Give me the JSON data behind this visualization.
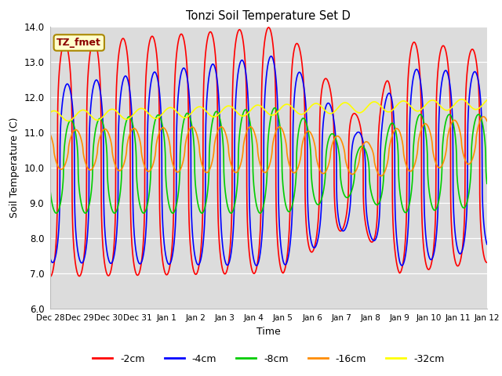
{
  "title": "Tonzi Soil Temperature Set D",
  "xlabel": "Time",
  "ylabel": "Soil Temperature (C)",
  "ylim": [
    6.0,
    14.0
  ],
  "yticks": [
    6.0,
    7.0,
    8.0,
    9.0,
    10.0,
    11.0,
    12.0,
    13.0,
    14.0
  ],
  "xtick_labels": [
    "Dec 28",
    "Dec 29",
    "Dec 30",
    "Dec 31",
    "Jan 1",
    "Jan 2",
    "Jan 3",
    "Jan 4",
    "Jan 5",
    "Jan 6",
    "Jan 7",
    "Jan 8",
    "Jan 9",
    "Jan 10",
    "Jan 11",
    "Jan 12"
  ],
  "annotation_text": "TZ_fmet",
  "annotation_color": "#8B0000",
  "annotation_bg": "#FFFFCC",
  "bg_color": "#DCDCDC",
  "series": {
    "neg2cm": {
      "color": "#FF0000",
      "label": "-2cm",
      "linewidth": 1.2
    },
    "neg4cm": {
      "color": "#0000FF",
      "label": "-4cm",
      "linewidth": 1.2
    },
    "neg8cm": {
      "color": "#00CC00",
      "label": "-8cm",
      "linewidth": 1.2
    },
    "neg16cm": {
      "color": "#FF8C00",
      "label": "-16cm",
      "linewidth": 1.2
    },
    "neg32cm": {
      "color": "#FFFF00",
      "label": "-32cm",
      "linewidth": 1.2
    }
  }
}
